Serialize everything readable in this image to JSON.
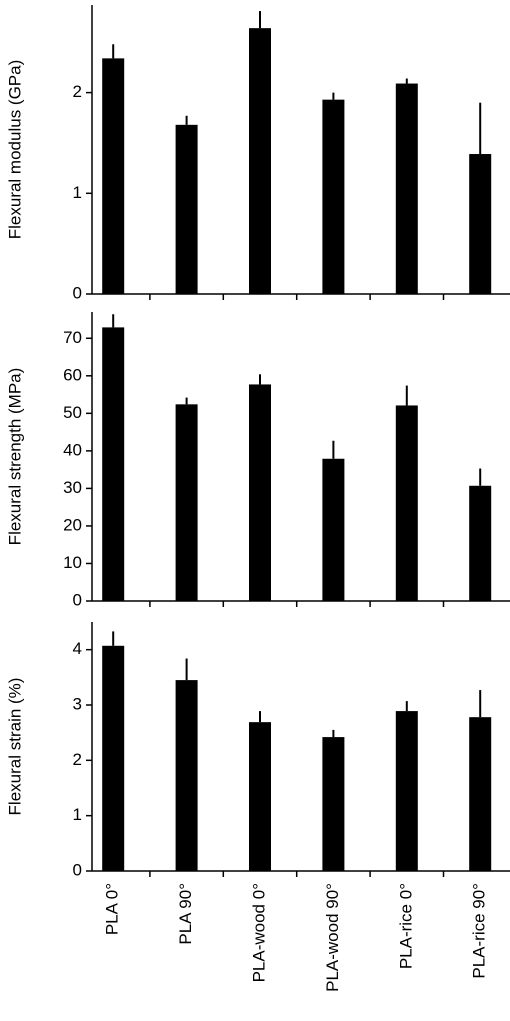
{
  "chart_data": [
    {
      "type": "bar",
      "y_label": "Flexural modulus (GPa)",
      "color": "#000000",
      "ylim": [
        0,
        2.87
      ],
      "yticks": [
        0,
        1,
        2
      ],
      "values": [
        2.34,
        1.68,
        2.64,
        1.93,
        2.09,
        1.39
      ],
      "errors": [
        0.14,
        0.09,
        0.17,
        0.07,
        0.05,
        0.51
      ]
    },
    {
      "type": "bar",
      "y_label": "Flexural strength (MPa)",
      "color": "#000000",
      "ylim": [
        0,
        77
      ],
      "yticks": [
        0,
        10,
        20,
        30,
        40,
        50,
        60,
        70
      ],
      "values": [
        72.9,
        52.4,
        57.7,
        37.9,
        52.1,
        30.7
      ],
      "errors": [
        3.5,
        1.8,
        2.7,
        4.8,
        5.3,
        4.6
      ]
    },
    {
      "type": "bar",
      "y_label": "Flexural strain (%)",
      "color": "#000000",
      "ylim": [
        0,
        4.5
      ],
      "yticks": [
        0,
        1,
        2,
        3,
        4
      ],
      "categories": [
        "PLA 0°",
        "PLA 90°",
        "PLA-wood 0°",
        "PLA-wood 90°",
        "PLA-rice 0°",
        "PLA-rice 90°"
      ],
      "values": [
        4.07,
        3.45,
        2.69,
        2.42,
        2.89,
        2.78
      ],
      "errors": [
        0.26,
        0.39,
        0.2,
        0.13,
        0.18,
        0.49
      ]
    }
  ]
}
